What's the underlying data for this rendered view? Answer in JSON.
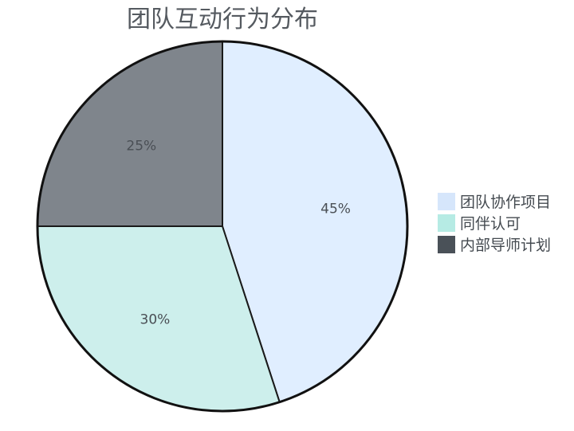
{
  "chart_data": {
    "type": "pie",
    "title": "团队互动行为分布",
    "slices": [
      {
        "label": "团队协作项目",
        "value": 45,
        "display": "45%",
        "color": "#e0eeff",
        "legend_color": "#d6e6fb"
      },
      {
        "label": "同伴认可",
        "value": 30,
        "display": "30%",
        "color": "#cdefec",
        "legend_color": "#b6ebe4"
      },
      {
        "label": "内部导师计划",
        "value": 25,
        "display": "25%",
        "color": "#7f858c",
        "legend_color": "#4a5158"
      }
    ],
    "legend_position": "right",
    "start_angle_deg": 0,
    "direction": "clockwise",
    "outline_color": "#111111"
  }
}
